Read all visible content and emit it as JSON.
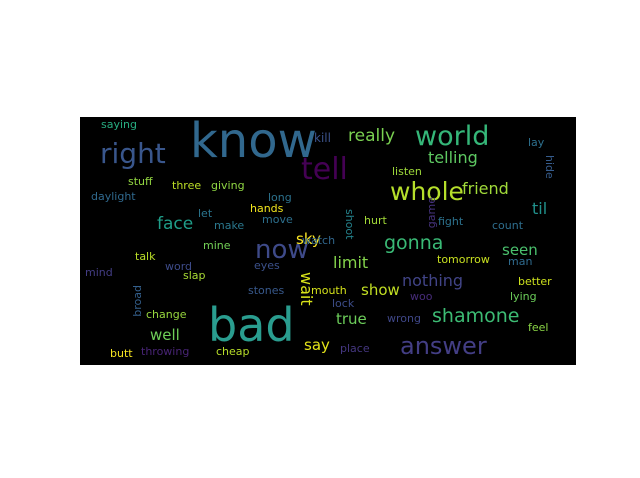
{
  "words": {
    "know": {
      "text": "know",
      "color": "#31688e"
    },
    "bad": {
      "text": "bad",
      "color": "#2a9d8f"
    },
    "tell": {
      "text": "tell",
      "color": "#440154"
    },
    "right": {
      "text": "right",
      "color": "#39568c"
    },
    "world": {
      "text": "world",
      "color": "#35b779"
    },
    "whole": {
      "text": "whole",
      "color": "#b5de2b"
    },
    "answer": {
      "text": "answer",
      "color": "#433e85"
    },
    "shamone": {
      "text": "shamone",
      "color": "#3dbc74"
    },
    "now": {
      "text": "now",
      "color": "#3e4a89"
    },
    "gonna": {
      "text": "gonna",
      "color": "#3aba76"
    },
    "telling": {
      "text": "telling",
      "color": "#5ec962"
    },
    "really": {
      "text": "really",
      "color": "#7ad151"
    },
    "friend": {
      "text": "friend",
      "color": "#a0da39"
    },
    "til": {
      "text": "til",
      "color": "#21918c"
    },
    "face": {
      "text": "face",
      "color": "#1f9e89"
    },
    "sky": {
      "text": "sky",
      "color": "#fde725"
    },
    "wait": {
      "text": "wait",
      "color": "#d8e219"
    },
    "limit": {
      "text": "limit",
      "color": "#84d44b"
    },
    "nothing": {
      "text": "nothing",
      "color": "#414487"
    },
    "seen": {
      "text": "seen",
      "color": "#4ac16d"
    },
    "show": {
      "text": "show",
      "color": "#c2df23"
    },
    "true": {
      "text": "true",
      "color": "#6ccd5a"
    },
    "well": {
      "text": "well",
      "color": "#6ece58"
    },
    "say": {
      "text": "say",
      "color": "#e5e419"
    },
    "kill": {
      "text": "kill",
      "color": "#3b528b"
    },
    "saying": {
      "text": "saying",
      "color": "#27ad81"
    },
    "stuff": {
      "text": "stuff",
      "color": "#93d741"
    },
    "three": {
      "text": "three",
      "color": "#bddf26"
    },
    "giving": {
      "text": "giving",
      "color": "#90d743"
    },
    "long": {
      "text": "long",
      "color": "#2c728e"
    },
    "daylight": {
      "text": "daylight",
      "color": "#30698e"
    },
    "lay": {
      "text": "lay",
      "color": "#2d708e"
    },
    "hide": {
      "text": "hide",
      "color": "#365c8d"
    },
    "listen": {
      "text": "listen",
      "color": "#9fda3a"
    },
    "game": {
      "text": "game",
      "color": "#46337e"
    },
    "fight": {
      "text": "fight",
      "color": "#2c728e"
    },
    "count": {
      "text": "count",
      "color": "#2e6e8e"
    },
    "hands": {
      "text": "hands",
      "color": "#f1e51d"
    },
    "let": {
      "text": "let",
      "color": "#2b758e"
    },
    "make": {
      "text": "make",
      "color": "#2a788e"
    },
    "move": {
      "text": "move",
      "color": "#2d708e"
    },
    "shoot": {
      "text": "shoot",
      "color": "#25848e"
    },
    "hurt": {
      "text": "hurt",
      "color": "#a2da37"
    },
    "watch": {
      "text": "watch",
      "color": "#31678e"
    },
    "mine": {
      "text": "mine",
      "color": "#73d056"
    },
    "talk": {
      "text": "talk",
      "color": "#bade28"
    },
    "word": {
      "text": "word",
      "color": "#3e4c8a"
    },
    "eyes": {
      "text": "eyes",
      "color": "#3b518b"
    },
    "tomorrow": {
      "text": "tomorrow",
      "color": "#c8e020"
    },
    "man": {
      "text": "man",
      "color": "#2f6b8e"
    },
    "mind": {
      "text": "mind",
      "color": "#433d84"
    },
    "slap": {
      "text": "slap",
      "color": "#a8db34"
    },
    "better": {
      "text": "better",
      "color": "#cde11d"
    },
    "broad": {
      "text": "broad",
      "color": "#34608d"
    },
    "stones": {
      "text": "stones",
      "color": "#38598c"
    },
    "mouth": {
      "text": "mouth",
      "color": "#d5e21a"
    },
    "woo": {
      "text": "woo",
      "color": "#472c7a"
    },
    "lying": {
      "text": "lying",
      "color": "#6ccd5a"
    },
    "lock": {
      "text": "lock",
      "color": "#3d4d8a"
    },
    "change": {
      "text": "change",
      "color": "#98d83e"
    },
    "wrong": {
      "text": "wrong",
      "color": "#3f4788"
    },
    "feel": {
      "text": "feel",
      "color": "#8bd646"
    },
    "butt": {
      "text": "butt",
      "color": "#f8e621"
    },
    "throwing": {
      "text": "throwing",
      "color": "#482475"
    },
    "cheap": {
      "text": "cheap",
      "color": "#b8de29"
    },
    "place": {
      "text": "place",
      "color": "#453781"
    }
  }
}
